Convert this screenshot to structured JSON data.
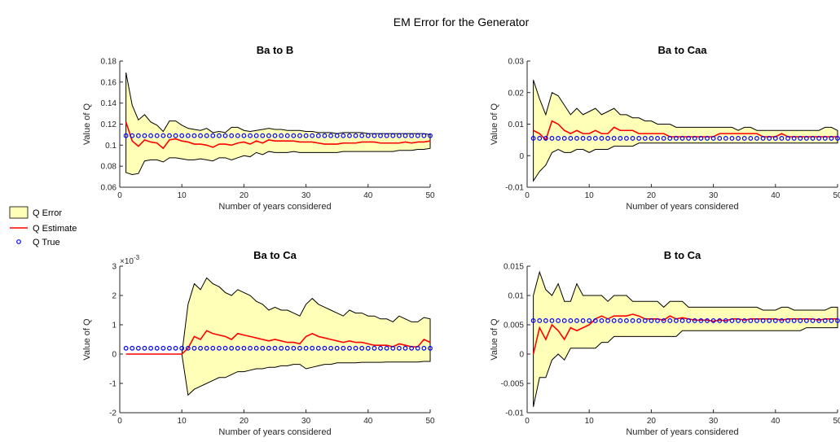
{
  "figure_title": "EM Error for the Generator",
  "legend": {
    "entries": [
      "Q Error",
      "Q Estimate",
      "Q True"
    ]
  },
  "colors": {
    "error_fill": "#ffffb8",
    "error_edge": "#000000",
    "estimate": "#ff0000",
    "true_marker": "#0000ff"
  },
  "chart_data": [
    {
      "type": "area",
      "title": "Ba to B",
      "xlabel": "Number of years considered",
      "ylabel": "Value of Q",
      "xlim": [
        0,
        50
      ],
      "ylim": [
        0.06,
        0.18
      ],
      "xticks": [
        0,
        10,
        20,
        30,
        40,
        50
      ],
      "xticklabels": [
        "0",
        "10",
        "20",
        "30",
        "40",
        "50"
      ],
      "yticks": [
        0.06,
        0.08,
        0.1,
        0.12,
        0.14,
        0.16,
        0.18
      ],
      "yticklabels": [
        "0.06",
        "0.08",
        "0.1",
        "0.12",
        "0.14",
        "0.16",
        "0.18"
      ],
      "exponent_label": "",
      "x": [
        1,
        2,
        3,
        4,
        5,
        6,
        7,
        8,
        9,
        10,
        11,
        12,
        13,
        14,
        15,
        16,
        17,
        18,
        19,
        20,
        21,
        22,
        23,
        24,
        25,
        26,
        27,
        28,
        29,
        30,
        31,
        32,
        33,
        34,
        35,
        36,
        37,
        38,
        39,
        40,
        41,
        42,
        43,
        44,
        45,
        46,
        47,
        48,
        49,
        50
      ],
      "upper": [
        0.169,
        0.138,
        0.124,
        0.129,
        0.122,
        0.119,
        0.113,
        0.123,
        0.123,
        0.119,
        0.116,
        0.115,
        0.114,
        0.116,
        0.112,
        0.113,
        0.112,
        0.117,
        0.117,
        0.114,
        0.113,
        0.114,
        0.115,
        0.116,
        0.115,
        0.115,
        0.114,
        0.114,
        0.114,
        0.113,
        0.113,
        0.112,
        0.112,
        0.112,
        0.111,
        0.112,
        0.112,
        0.112,
        0.112,
        0.111,
        0.111,
        0.111,
        0.111,
        0.111,
        0.111,
        0.111,
        0.111,
        0.111,
        0.111,
        0.11
      ],
      "estimate": [
        0.122,
        0.104,
        0.099,
        0.105,
        0.103,
        0.102,
        0.097,
        0.105,
        0.106,
        0.104,
        0.103,
        0.101,
        0.101,
        0.1,
        0.098,
        0.101,
        0.101,
        0.1,
        0.102,
        0.103,
        0.101,
        0.104,
        0.102,
        0.105,
        0.104,
        0.104,
        0.104,
        0.104,
        0.103,
        0.103,
        0.103,
        0.102,
        0.101,
        0.101,
        0.101,
        0.102,
        0.102,
        0.102,
        0.103,
        0.103,
        0.103,
        0.102,
        0.102,
        0.102,
        0.102,
        0.103,
        0.102,
        0.103,
        0.103,
        0.104
      ],
      "lower": [
        0.074,
        0.072,
        0.073,
        0.085,
        0.086,
        0.086,
        0.084,
        0.088,
        0.088,
        0.087,
        0.086,
        0.086,
        0.087,
        0.086,
        0.085,
        0.088,
        0.088,
        0.086,
        0.088,
        0.09,
        0.089,
        0.093,
        0.091,
        0.094,
        0.093,
        0.093,
        0.093,
        0.094,
        0.093,
        0.093,
        0.093,
        0.093,
        0.093,
        0.093,
        0.093,
        0.094,
        0.094,
        0.094,
        0.094,
        0.094,
        0.094,
        0.094,
        0.094,
        0.094,
        0.095,
        0.095,
        0.095,
        0.096,
        0.096,
        0.097
      ],
      "true_value": 0.109
    },
    {
      "type": "area",
      "title": "Ba to Caa",
      "xlabel": "Number of years considered",
      "ylabel": "Value of Q",
      "xlim": [
        0,
        50
      ],
      "ylim": [
        -0.01,
        0.03
      ],
      "xticks": [
        0,
        10,
        20,
        30,
        40,
        50
      ],
      "xticklabels": [
        "0",
        "10",
        "20",
        "30",
        "40",
        "50"
      ],
      "yticks": [
        -0.01,
        0,
        0.01,
        0.02,
        0.03
      ],
      "yticklabels": [
        "-0.01",
        "0",
        "0.01",
        "0.02",
        "0.03"
      ],
      "exponent_label": "",
      "x": [
        1,
        2,
        3,
        4,
        5,
        6,
        7,
        8,
        9,
        10,
        11,
        12,
        13,
        14,
        15,
        16,
        17,
        18,
        19,
        20,
        21,
        22,
        23,
        24,
        25,
        26,
        27,
        28,
        29,
        30,
        31,
        32,
        33,
        34,
        35,
        36,
        37,
        38,
        39,
        40,
        41,
        42,
        43,
        44,
        45,
        46,
        47,
        48,
        49,
        50
      ],
      "upper": [
        0.024,
        0.018,
        0.013,
        0.02,
        0.019,
        0.016,
        0.013,
        0.015,
        0.013,
        0.014,
        0.015,
        0.013,
        0.014,
        0.015,
        0.013,
        0.013,
        0.012,
        0.012,
        0.011,
        0.011,
        0.01,
        0.01,
        0.01,
        0.009,
        0.009,
        0.009,
        0.009,
        0.009,
        0.009,
        0.009,
        0.009,
        0.009,
        0.009,
        0.008,
        0.009,
        0.009,
        0.008,
        0.008,
        0.008,
        0.008,
        0.008,
        0.008,
        0.008,
        0.008,
        0.008,
        0.008,
        0.008,
        0.009,
        0.009,
        0.008
      ],
      "estimate": [
        0.008,
        0.007,
        0.005,
        0.011,
        0.01,
        0.008,
        0.007,
        0.008,
        0.007,
        0.007,
        0.008,
        0.007,
        0.007,
        0.009,
        0.008,
        0.008,
        0.008,
        0.007,
        0.007,
        0.007,
        0.007,
        0.007,
        0.006,
        0.006,
        0.006,
        0.006,
        0.006,
        0.006,
        0.006,
        0.006,
        0.007,
        0.007,
        0.007,
        0.007,
        0.007,
        0.007,
        0.007,
        0.006,
        0.006,
        0.006,
        0.007,
        0.006,
        0.006,
        0.006,
        0.006,
        0.006,
        0.006,
        0.006,
        0.006,
        0.006
      ],
      "lower": [
        -0.008,
        -0.005,
        -0.003,
        0.001,
        0.002,
        0.001,
        0.001,
        0.002,
        0.002,
        0.001,
        0.002,
        0.002,
        0.002,
        0.003,
        0.003,
        0.003,
        0.003,
        0.004,
        0.004,
        0.004,
        0.004,
        0.004,
        0.004,
        0.004,
        0.004,
        0.004,
        0.004,
        0.004,
        0.004,
        0.004,
        0.004,
        0.004,
        0.004,
        0.004,
        0.004,
        0.004,
        0.004,
        0.004,
        0.004,
        0.004,
        0.004,
        0.004,
        0.004,
        0.004,
        0.004,
        0.004,
        0.004,
        0.004,
        0.004,
        0.004
      ],
      "true_value": 0.0055
    },
    {
      "type": "area",
      "title": "Ba to Ca",
      "xlabel": "Number of years considered",
      "ylabel": "Value of Q",
      "xlim": [
        0,
        50
      ],
      "ylim": [
        -2,
        3
      ],
      "xticks": [
        0,
        10,
        20,
        30,
        40,
        50
      ],
      "xticklabels": [
        "0",
        "10",
        "20",
        "30",
        "40",
        "50"
      ],
      "yticks": [
        -2,
        -1,
        0,
        1,
        2,
        3
      ],
      "yticklabels": [
        "-2",
        "-1",
        "0",
        "1",
        "2",
        "3"
      ],
      "exponent_label": "×10",
      "exponent_power": "-3",
      "x": [
        1,
        2,
        3,
        4,
        5,
        6,
        7,
        8,
        9,
        10,
        11,
        12,
        13,
        14,
        15,
        16,
        17,
        18,
        19,
        20,
        21,
        22,
        23,
        24,
        25,
        26,
        27,
        28,
        29,
        30,
        31,
        32,
        33,
        34,
        35,
        36,
        37,
        38,
        39,
        40,
        41,
        42,
        43,
        44,
        45,
        46,
        47,
        48,
        49,
        50
      ],
      "upper": [
        0,
        0,
        0,
        0,
        0,
        0,
        0,
        0,
        0,
        0,
        1.7,
        2.4,
        2.2,
        2.6,
        2.4,
        2.3,
        2.1,
        2.0,
        2.2,
        2.1,
        2.0,
        1.8,
        1.7,
        1.5,
        1.6,
        1.5,
        1.5,
        1.4,
        1.3,
        1.7,
        1.9,
        1.7,
        1.6,
        1.5,
        1.4,
        1.3,
        1.5,
        1.4,
        1.4,
        1.3,
        1.3,
        1.2,
        1.2,
        1.1,
        1.3,
        1.2,
        1.1,
        1.1,
        1.25,
        1.2
      ],
      "estimate": [
        0,
        0,
        0,
        0,
        0,
        0,
        0,
        0,
        0,
        0,
        0.2,
        0.6,
        0.5,
        0.8,
        0.7,
        0.65,
        0.6,
        0.5,
        0.7,
        0.65,
        0.6,
        0.55,
        0.5,
        0.45,
        0.5,
        0.45,
        0.4,
        0.4,
        0.35,
        0.6,
        0.7,
        0.6,
        0.55,
        0.5,
        0.45,
        0.4,
        0.45,
        0.4,
        0.4,
        0.35,
        0.3,
        0.3,
        0.3,
        0.25,
        0.35,
        0.3,
        0.25,
        0.25,
        0.5,
        0.4
      ],
      "lower": [
        0,
        0,
        0,
        0,
        0,
        0,
        0,
        0,
        0,
        0,
        -1.4,
        -1.2,
        -1.1,
        -1.0,
        -0.9,
        -0.8,
        -0.8,
        -0.7,
        -0.6,
        -0.6,
        -0.55,
        -0.5,
        -0.5,
        -0.45,
        -0.45,
        -0.4,
        -0.4,
        -0.35,
        -0.35,
        -0.5,
        -0.45,
        -0.4,
        -0.35,
        -0.35,
        -0.3,
        -0.3,
        -0.3,
        -0.3,
        -0.28,
        -0.28,
        -0.28,
        -0.28,
        -0.27,
        -0.27,
        -0.27,
        -0.27,
        -0.27,
        -0.27,
        -0.25,
        -0.25
      ],
      "true_value": 0.2
    },
    {
      "type": "area",
      "title": "B to Ca",
      "xlabel": "Number of years considered",
      "ylabel": "Value of Q",
      "xlim": [
        0,
        50
      ],
      "ylim": [
        -0.01,
        0.015
      ],
      "xticks": [
        0,
        10,
        20,
        30,
        40,
        50
      ],
      "xticklabels": [
        "0",
        "10",
        "20",
        "30",
        "40",
        "50"
      ],
      "yticks": [
        -0.01,
        -0.005,
        0,
        0.005,
        0.01,
        0.015
      ],
      "yticklabels": [
        "-0.01",
        "-0.005",
        "0",
        "0.005",
        "0.01",
        "0.015"
      ],
      "exponent_label": "",
      "x": [
        1,
        2,
        3,
        4,
        5,
        6,
        7,
        8,
        9,
        10,
        11,
        12,
        13,
        14,
        15,
        16,
        17,
        18,
        19,
        20,
        21,
        22,
        23,
        24,
        25,
        26,
        27,
        28,
        29,
        30,
        31,
        32,
        33,
        34,
        35,
        36,
        37,
        38,
        39,
        40,
        41,
        42,
        43,
        44,
        45,
        46,
        47,
        48,
        49,
        50
      ],
      "upper": [
        0.01,
        0.014,
        0.011,
        0.01,
        0.012,
        0.009,
        0.009,
        0.012,
        0.01,
        0.01,
        0.01,
        0.01,
        0.009,
        0.01,
        0.01,
        0.01,
        0.009,
        0.009,
        0.009,
        0.009,
        0.009,
        0.008,
        0.009,
        0.009,
        0.009,
        0.008,
        0.008,
        0.008,
        0.008,
        0.008,
        0.008,
        0.008,
        0.008,
        0.008,
        0.008,
        0.008,
        0.008,
        0.0075,
        0.0075,
        0.0075,
        0.008,
        0.008,
        0.0075,
        0.0075,
        0.0075,
        0.0075,
        0.0075,
        0.0075,
        0.008,
        0.008
      ],
      "estimate": [
        0.0,
        0.0045,
        0.0025,
        0.005,
        0.004,
        0.0025,
        0.0045,
        0.004,
        0.0045,
        0.005,
        0.006,
        0.0065,
        0.006,
        0.0065,
        0.0065,
        0.0065,
        0.0068,
        0.0065,
        0.006,
        0.006,
        0.006,
        0.0058,
        0.0065,
        0.006,
        0.0062,
        0.006,
        0.0058,
        0.0058,
        0.0058,
        0.0056,
        0.0058,
        0.0057,
        0.006,
        0.006,
        0.0058,
        0.006,
        0.006,
        0.006,
        0.006,
        0.006,
        0.0058,
        0.006,
        0.006,
        0.006,
        0.006,
        0.006,
        0.0058,
        0.006,
        0.006,
        0.006
      ],
      "lower": [
        -0.009,
        -0.004,
        -0.004,
        -0.001,
        0.0,
        -0.001,
        0.001,
        0.001,
        0.001,
        0.001,
        0.001,
        0.002,
        0.002,
        0.003,
        0.003,
        0.003,
        0.003,
        0.003,
        0.003,
        0.003,
        0.003,
        0.003,
        0.003,
        0.003,
        0.004,
        0.004,
        0.004,
        0.004,
        0.004,
        0.004,
        0.004,
        0.004,
        0.004,
        0.004,
        0.004,
        0.004,
        0.004,
        0.004,
        0.004,
        0.004,
        0.004,
        0.004,
        0.004,
        0.004,
        0.0045,
        0.0045,
        0.0045,
        0.0045,
        0.0045,
        0.0045
      ],
      "true_value": 0.0057
    }
  ]
}
